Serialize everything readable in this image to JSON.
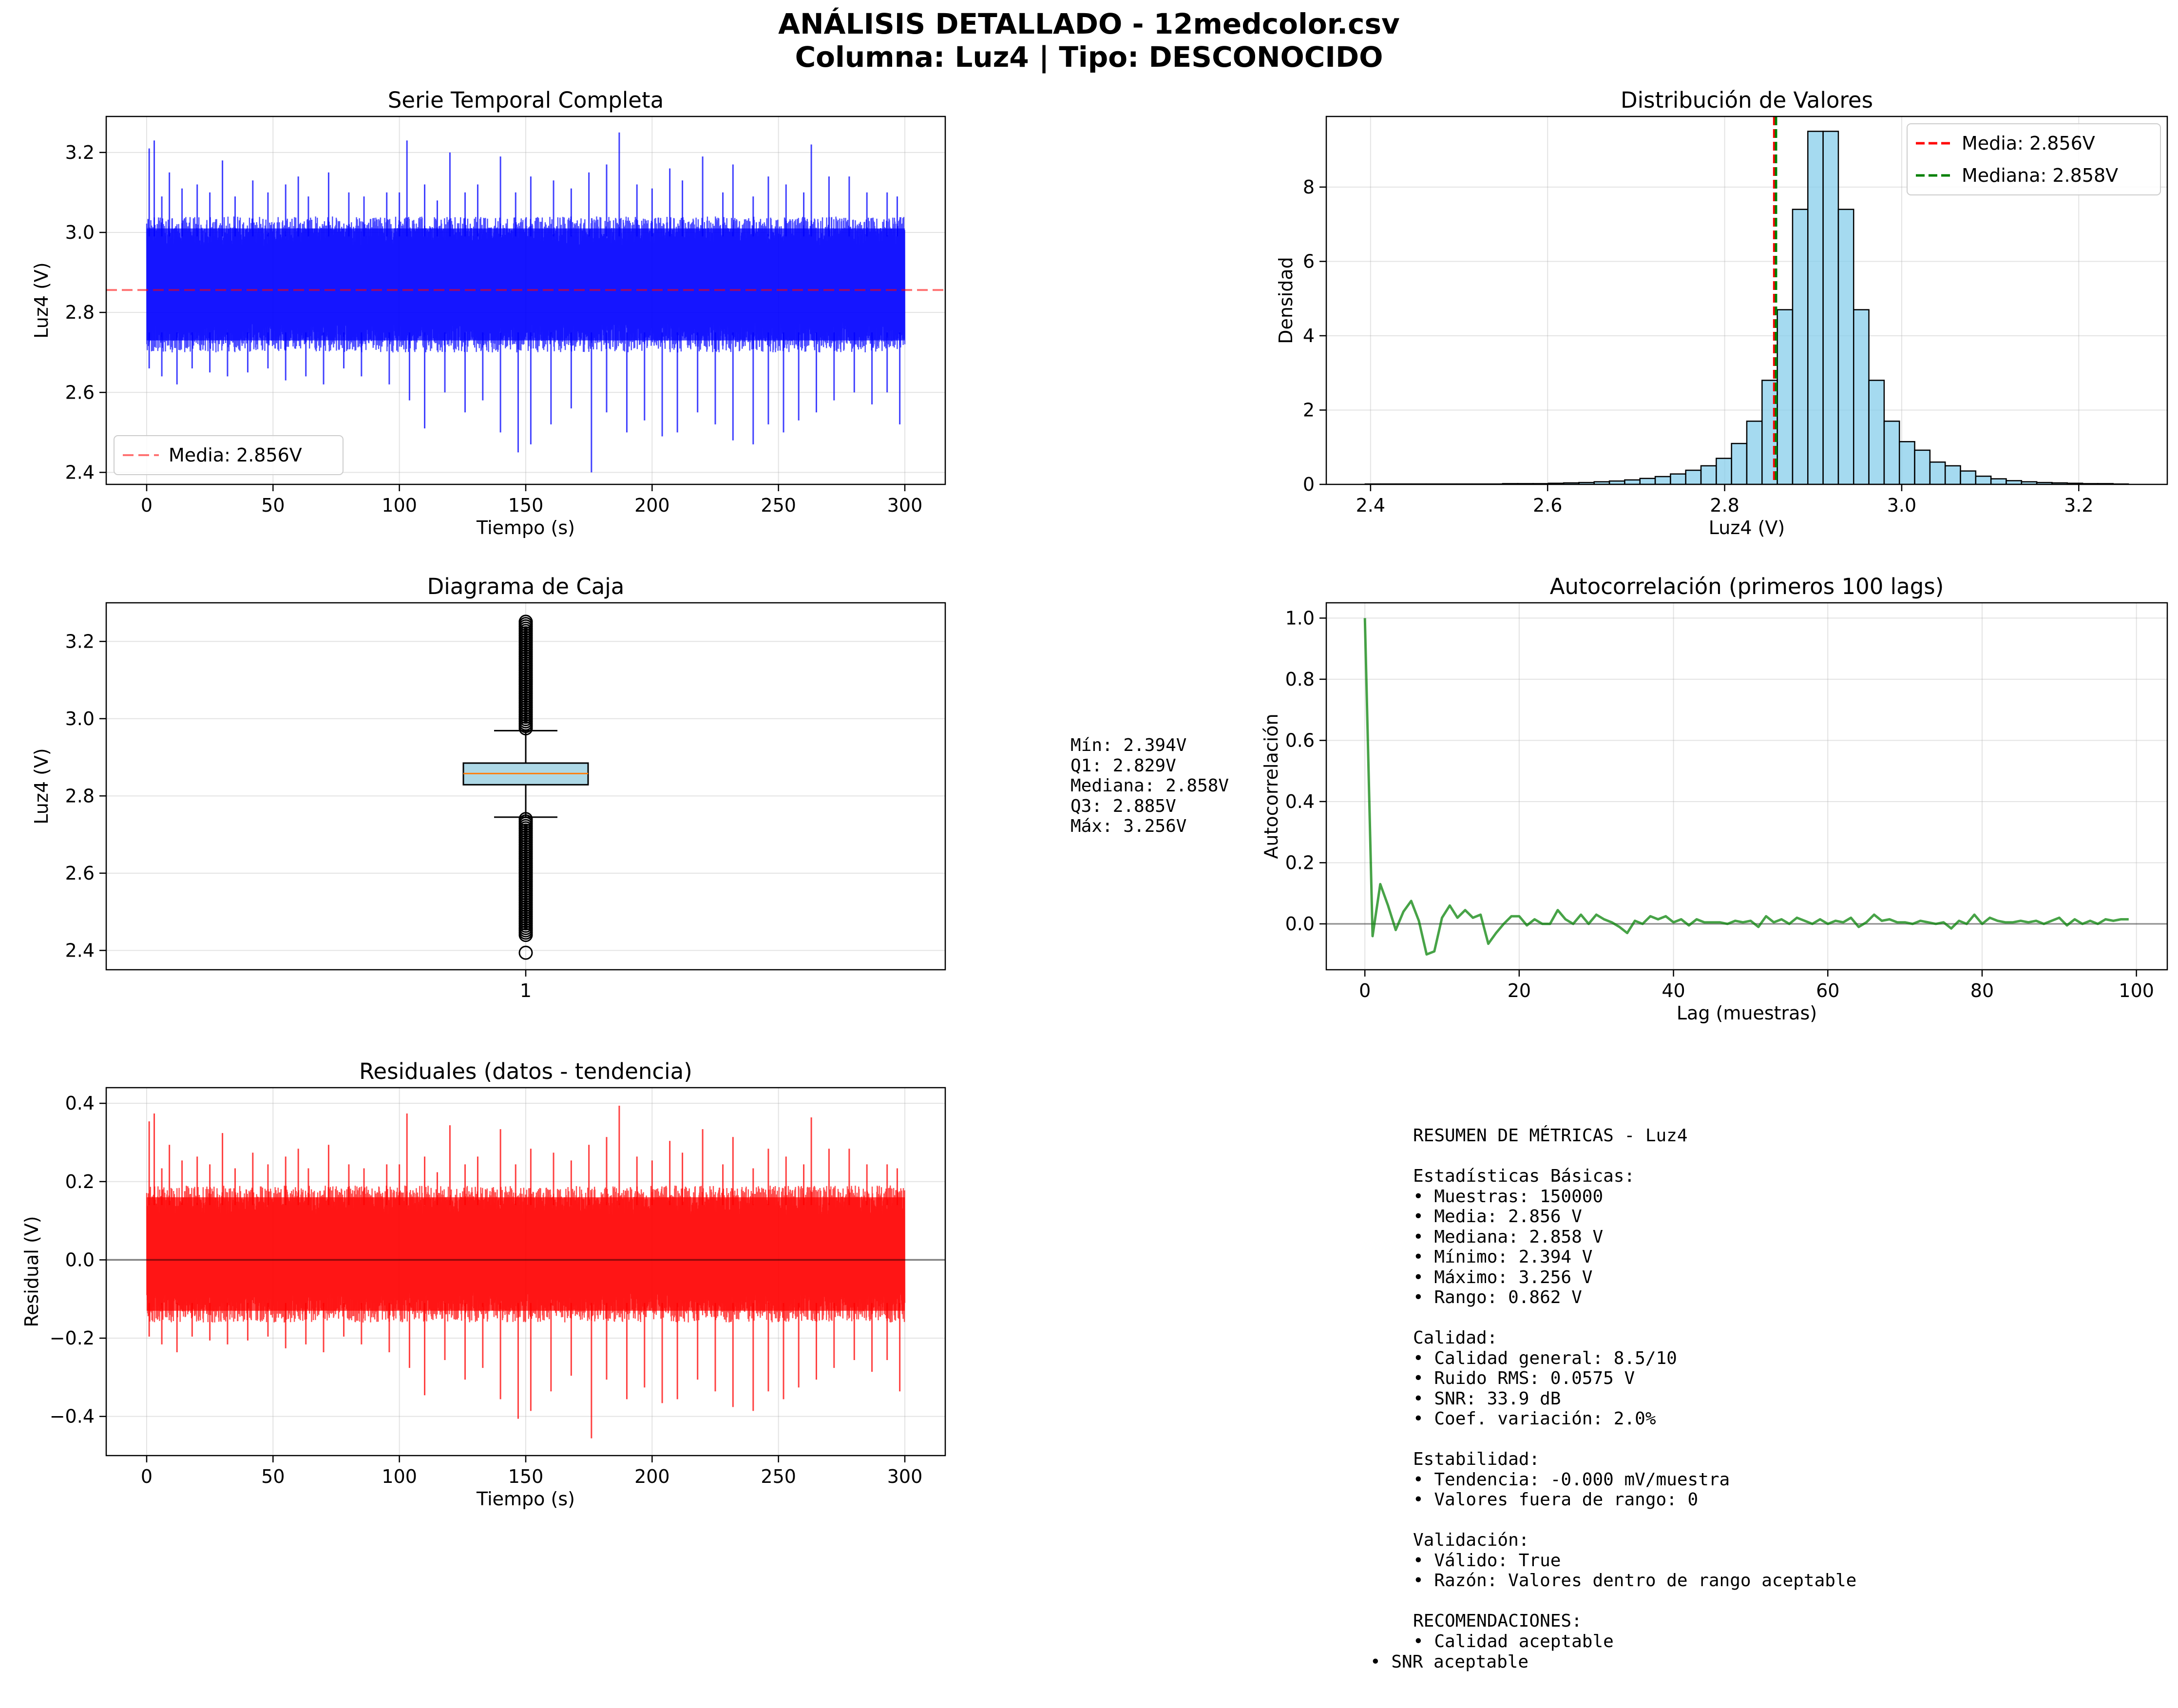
{
  "figure": {
    "title_line1": "ANÁLISIS DETALLADO - 12medcolor.csv",
    "title_line2": "Columna: Luz4 | Tipo: DESCONOCIDO"
  },
  "box_stats_text": [
    "Mín: 2.394V",
    "Q1: 2.829V",
    "Mediana: 2.858V",
    "Q3: 2.885V",
    "Máx: 3.256V"
  ],
  "summary_text": [
    "RESUMEN DE MÉTRICAS - Luz4",
    "",
    "Estadísticas Básicas:",
    "• Muestras: 150000",
    "• Media: 2.856 V",
    "• Mediana: 2.858 V",
    "• Mínimo: 2.394 V",
    "• Máximo: 3.256 V",
    "• Rango: 0.862 V",
    "",
    "Calidad:",
    "• Calidad general: 8.5/10",
    "• Ruido RMS: 0.0575 V",
    "• SNR: 33.9 dB",
    "• Coef. variación: 2.0%",
    "",
    "Estabilidad:",
    "• Tendencia: -0.000 mV/muestra",
    "• Valores fuera de rango: 0",
    "",
    "Validación:",
    "• Válido: True",
    "• Razón: Valores dentro de rango aceptable",
    "",
    "RECOMENDACIONES:",
    "• Calidad aceptable"
  ],
  "summary_last_line": "• SNR aceptable",
  "colors": {
    "series_blue": "#0000ff",
    "series_red": "#ff0000",
    "mean_line": "#ff0000",
    "median_line": "#008000",
    "hist_fill": "#87ceeb",
    "box_fill": "#add8e6",
    "box_median": "#ff7f0e",
    "acf_green": "#008000",
    "grid": "#b0b0b0"
  },
  "chart_data": [
    {
      "id": "timeseries",
      "type": "line",
      "title": "Serie Temporal Completa",
      "xlabel": "Tiempo (s)",
      "ylabel": "Luz4 (V)",
      "xlim": [
        -16,
        316
      ],
      "ylim": [
        2.37,
        3.29
      ],
      "xticks": [
        0,
        50,
        100,
        150,
        200,
        250,
        300
      ],
      "yticks": [
        2.4,
        2.6,
        2.8,
        3.0,
        3.2
      ],
      "ytick_labels": [
        "2.4",
        "2.6",
        "2.8",
        "3.0",
        "3.2"
      ],
      "grid": true,
      "mean": 2.856,
      "legend": [
        {
          "label": "Media: 2.856V",
          "style": "dashed",
          "color": "#ff0000"
        }
      ],
      "legend_loc": "lower left",
      "samples": 150000,
      "x_range": [
        0,
        300
      ],
      "band": {
        "low": 2.7,
        "high": 3.04
      },
      "spikes_up": [
        [
          1,
          3.21
        ],
        [
          3,
          3.23
        ],
        [
          6,
          3.09
        ],
        [
          9,
          3.15
        ],
        [
          14,
          3.11
        ],
        [
          20,
          3.12
        ],
        [
          25,
          3.1
        ],
        [
          30,
          3.18
        ],
        [
          35,
          3.09
        ],
        [
          42,
          3.13
        ],
        [
          48,
          3.1
        ],
        [
          55,
          3.12
        ],
        [
          60,
          3.14
        ],
        [
          64,
          3.09
        ],
        [
          72,
          3.15
        ],
        [
          80,
          3.1
        ],
        [
          86,
          3.09
        ],
        [
          95,
          3.1
        ],
        [
          100,
          3.1
        ],
        [
          103,
          3.23
        ],
        [
          110,
          3.12
        ],
        [
          115,
          3.08
        ],
        [
          120,
          3.2
        ],
        [
          126,
          3.1
        ],
        [
          131,
          3.12
        ],
        [
          140,
          3.19
        ],
        [
          146,
          3.1
        ],
        [
          152,
          3.14
        ],
        [
          161,
          3.13
        ],
        [
          168,
          3.11
        ],
        [
          175,
          3.15
        ],
        [
          182,
          3.17
        ],
        [
          187,
          3.25
        ],
        [
          194,
          3.12
        ],
        [
          200,
          3.11
        ],
        [
          207,
          3.16
        ],
        [
          212,
          3.13
        ],
        [
          220,
          3.19
        ],
        [
          228,
          3.1
        ],
        [
          232,
          3.17
        ],
        [
          240,
          3.09
        ],
        [
          246,
          3.14
        ],
        [
          253,
          3.12
        ],
        [
          260,
          3.1
        ],
        [
          263,
          3.22
        ],
        [
          270,
          3.14
        ],
        [
          278,
          3.14
        ],
        [
          285,
          3.1
        ],
        [
          293,
          3.1
        ],
        [
          297,
          3.09
        ]
      ],
      "spikes_down": [
        [
          1,
          2.66
        ],
        [
          6,
          2.64
        ],
        [
          12,
          2.62
        ],
        [
          18,
          2.66
        ],
        [
          25,
          2.65
        ],
        [
          32,
          2.64
        ],
        [
          40,
          2.65
        ],
        [
          48,
          2.66
        ],
        [
          55,
          2.63
        ],
        [
          63,
          2.64
        ],
        [
          70,
          2.62
        ],
        [
          78,
          2.66
        ],
        [
          85,
          2.64
        ],
        [
          96,
          2.62
        ],
        [
          104,
          2.58
        ],
        [
          110,
          2.51
        ],
        [
          118,
          2.6
        ],
        [
          126,
          2.55
        ],
        [
          133,
          2.58
        ],
        [
          140,
          2.5
        ],
        [
          147,
          2.45
        ],
        [
          152,
          2.47
        ],
        [
          160,
          2.52
        ],
        [
          168,
          2.56
        ],
        [
          176,
          2.4
        ],
        [
          182,
          2.55
        ],
        [
          190,
          2.5
        ],
        [
          197,
          2.53
        ],
        [
          204,
          2.49
        ],
        [
          210,
          2.5
        ],
        [
          218,
          2.55
        ],
        [
          225,
          2.52
        ],
        [
          232,
          2.48
        ],
        [
          240,
          2.47
        ],
        [
          246,
          2.52
        ],
        [
          252,
          2.5
        ],
        [
          258,
          2.53
        ],
        [
          265,
          2.55
        ],
        [
          272,
          2.58
        ],
        [
          280,
          2.6
        ],
        [
          287,
          2.57
        ],
        [
          293,
          2.6
        ],
        [
          298,
          2.52
        ]
      ]
    },
    {
      "id": "histogram",
      "type": "bar",
      "title": "Distribución de Valores",
      "xlabel": "Luz4 (V)",
      "ylabel": "Densidad",
      "xlim": [
        2.35,
        3.3
      ],
      "ylim": [
        0,
        9.9
      ],
      "xticks": [
        2.4,
        2.6,
        2.8,
        3.0,
        3.2
      ],
      "xtick_labels": [
        "2.4",
        "2.6",
        "2.8",
        "3.0",
        "3.2"
      ],
      "yticks": [
        0,
        2,
        4,
        6,
        8
      ],
      "grid": true,
      "bin_start": 2.394,
      "bin_width": 0.01724,
      "values": [
        0.01,
        0.01,
        0.01,
        0.01,
        0.01,
        0.01,
        0.01,
        0.01,
        0.01,
        0.02,
        0.02,
        0.02,
        0.03,
        0.04,
        0.05,
        0.07,
        0.09,
        0.12,
        0.16,
        0.21,
        0.28,
        0.38,
        0.5,
        0.7,
        1.1,
        1.7,
        2.8,
        4.7,
        7.4,
        9.5,
        9.5,
        7.4,
        4.7,
        2.8,
        1.7,
        1.15,
        0.92,
        0.6,
        0.5,
        0.36,
        0.22,
        0.15,
        0.1,
        0.07,
        0.05,
        0.04,
        0.03,
        0.02,
        0.02,
        0.01
      ],
      "mean": 2.856,
      "median": 2.858,
      "legend": [
        {
          "label": "Media: 2.856V",
          "style": "dashed",
          "color": "#ff0000"
        },
        {
          "label": "Mediana: 2.858V",
          "style": "dashed",
          "color": "#008000"
        }
      ],
      "legend_loc": "upper right"
    },
    {
      "id": "boxplot",
      "type": "box",
      "title": "Diagrama de Caja",
      "ylabel": "Luz4 (V)",
      "xticks": [
        1
      ],
      "xtick_labels": [
        "1"
      ],
      "yticks": [
        2.4,
        2.6,
        2.8,
        3.0,
        3.2
      ],
      "ytick_labels": [
        "2.4",
        "2.6",
        "2.8",
        "3.0",
        "3.2"
      ],
      "xlim": [
        0.5,
        1.5
      ],
      "ylim": [
        2.35,
        3.3
      ],
      "grid": true,
      "min": 2.394,
      "q1": 2.829,
      "median": 2.858,
      "q3": 2.885,
      "max": 3.256,
      "whisker_low": 2.745,
      "whisker_high": 2.969,
      "flier_high_range": [
        2.975,
        3.256
      ],
      "flier_low_range": [
        2.44,
        2.745
      ],
      "flier_isolated": [
        2.394
      ]
    },
    {
      "id": "autocorr",
      "type": "line",
      "title": "Autocorrelación (primeros 100 lags)",
      "xlabel": "Lag (muestras)",
      "ylabel": "Autocorrelación",
      "xlim": [
        -5,
        104
      ],
      "ylim": [
        -0.15,
        1.05
      ],
      "xticks": [
        0,
        20,
        40,
        60,
        80,
        100
      ],
      "yticks": [
        0.0,
        0.2,
        0.4,
        0.6,
        0.8,
        1.0
      ],
      "ytick_labels": [
        "0.0",
        "0.2",
        "0.4",
        "0.6",
        "0.8",
        "1.0"
      ],
      "grid": true,
      "zero_line": 0,
      "values": [
        1.0,
        -0.04,
        0.13,
        0.06,
        -0.02,
        0.04,
        0.075,
        0.01,
        -0.1,
        -0.09,
        0.02,
        0.06,
        0.02,
        0.045,
        0.02,
        0.03,
        -0.065,
        -0.03,
        0.0,
        0.025,
        0.025,
        -0.005,
        0.015,
        0.0,
        0.0,
        0.045,
        0.015,
        0.0,
        0.03,
        0.0,
        0.03,
        0.015,
        0.005,
        -0.01,
        -0.03,
        0.01,
        0.0,
        0.025,
        0.015,
        0.025,
        0.005,
        0.015,
        -0.005,
        0.015,
        0.005,
        0.005,
        0.005,
        0.0,
        0.01,
        0.005,
        0.01,
        -0.01,
        0.025,
        0.005,
        0.015,
        0.0,
        0.02,
        0.01,
        0.0,
        0.015,
        0.0,
        0.01,
        0.005,
        0.02,
        -0.01,
        0.005,
        0.03,
        0.01,
        0.015,
        0.005,
        0.005,
        0.0,
        0.01,
        0.005,
        0.0,
        0.005,
        -0.015,
        0.01,
        0.0,
        0.03,
        0.0,
        0.02,
        0.01,
        0.005,
        0.005,
        0.01,
        0.005,
        0.01,
        0.0,
        0.01,
        0.02,
        -0.005,
        0.015,
        0.0,
        0.01,
        0.0,
        0.015,
        0.01,
        0.015,
        0.015
      ]
    },
    {
      "id": "residuals",
      "type": "line",
      "title": "Residuales (datos - tendencia)",
      "xlabel": "Tiempo (s)",
      "ylabel": "Residual (V)",
      "xlim": [
        -16,
        316
      ],
      "ylim": [
        -0.5,
        0.44
      ],
      "xticks": [
        0,
        50,
        100,
        150,
        200,
        250,
        300
      ],
      "yticks": [
        -0.4,
        -0.2,
        0.0,
        0.2,
        0.4
      ],
      "ytick_labels": [
        "−0.4",
        "−0.2",
        "0.0",
        "0.2",
        "0.4"
      ],
      "grid": true,
      "zero_line": 0,
      "x_range": [
        0,
        300
      ],
      "band": {
        "low": -0.16,
        "high": 0.19
      }
    }
  ]
}
